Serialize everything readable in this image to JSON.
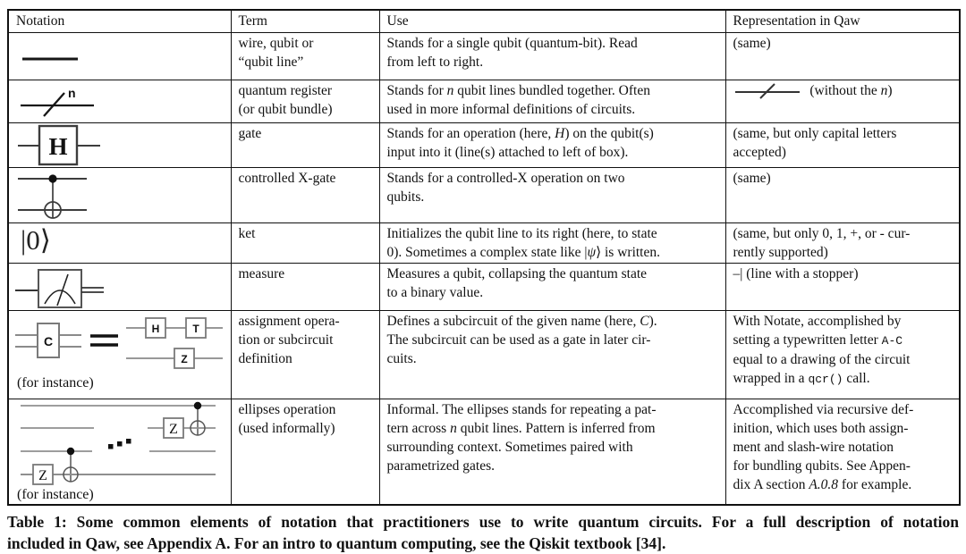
{
  "header": {
    "notation": "Notation",
    "term": "Term",
    "use": "Use",
    "representation": "Representation in Qaw"
  },
  "rows": [
    {
      "term": [
        {
          "t": "wire, qubit or\n“qubit line”"
        }
      ],
      "use": [
        {
          "t": "Stands for a single qubit (quantum-bit). Read\nfrom left to right."
        }
      ],
      "rep": [
        {
          "t": "(same)"
        }
      ]
    },
    {
      "notation": {
        "label": "n"
      },
      "term": [
        {
          "t": "quantum register\n(or qubit bundle)"
        }
      ],
      "use": [
        {
          "t": "Stands for "
        },
        {
          "t": "n",
          "s": "i"
        },
        {
          "t": " qubit lines bundled together. Often\nused in more informal definitions of circuits."
        }
      ],
      "rep": [
        {
          "t": " (without the "
        },
        {
          "t": "n",
          "s": "i"
        },
        {
          "t": ")"
        }
      ]
    },
    {
      "notation": {
        "label": "H"
      },
      "term": [
        {
          "t": "gate"
        }
      ],
      "use": [
        {
          "t": "Stands for an operation (here, "
        },
        {
          "t": "H",
          "s": "i"
        },
        {
          "t": ") on the qubit(s)\ninput into it (line(s) attached to left of box)."
        }
      ],
      "rep": [
        {
          "t": "(same, but only capital letters\naccepted)"
        }
      ]
    },
    {
      "term": [
        {
          "t": "controlled X-gate"
        }
      ],
      "use": [
        {
          "t": "Stands for a controlled-X operation on two\nqubits."
        }
      ],
      "rep": [
        {
          "t": "(same)"
        }
      ]
    },
    {
      "notation": {
        "ket": "|0⟩"
      },
      "term": [
        {
          "t": "ket"
        }
      ],
      "use": [
        {
          "t": "Initializes the qubit line to its right (here, to state\n0). Sometimes a complex state like |"
        },
        {
          "t": "ψ",
          "s": "i"
        },
        {
          "t": "⟩ is written."
        }
      ],
      "rep": [
        {
          "t": "(same, but only 0, 1, +, or - cur-\nrently supported)"
        }
      ]
    },
    {
      "term": [
        {
          "t": "measure"
        }
      ],
      "use": [
        {
          "t": "Measures a qubit, collapsing the quantum state\nto a binary value."
        }
      ],
      "rep": [
        {
          "t": "–| (line with a stopper)"
        }
      ]
    },
    {
      "notation": {
        "box_label": "C",
        "gate1": "H",
        "gate2": "T",
        "gate3": "Z",
        "for_instance": "(for instance)"
      },
      "term": [
        {
          "t": "assignment opera-\ntion or subcircuit\ndefinition"
        }
      ],
      "use": [
        {
          "t": "Defines a subcircuit of the given name (here, "
        },
        {
          "t": "C",
          "s": "i"
        },
        {
          "t": ").\nThe subcircuit can be used as a gate in later cir-\ncuits."
        }
      ],
      "rep": [
        {
          "t": "With Notate, accomplished by\nsetting a typewritten letter "
        },
        {
          "t": "A-C",
          "s": "m"
        },
        {
          "t": "\nequal to a drawing of the circuit\nwrapped in a "
        },
        {
          "t": "qcr()",
          "s": "m"
        },
        {
          "t": " call."
        }
      ]
    },
    {
      "notation": {
        "z_left": "Z",
        "z_right": "Z",
        "for_instance": "(for instance)"
      },
      "term": [
        {
          "t": "ellipses operation\n(used informally)"
        }
      ],
      "use": [
        {
          "t": "Informal. The ellipses stands for repeating a pat-\ntern across "
        },
        {
          "t": "n",
          "s": "i"
        },
        {
          "t": " qubit lines. Pattern is inferred from\nsurrounding context. Sometimes paired with\nparametrized gates."
        }
      ],
      "rep": [
        {
          "t": "Accomplished via recursive def-\ninition, which uses both assign-\nment and slash-wire notation\nfor bundling qubits. See Appen-\ndix A section "
        },
        {
          "t": "A.0.8",
          "s": "i"
        },
        {
          "t": " for example."
        }
      ]
    }
  ],
  "caption": {
    "line1": "Table 1: Some common elements of notation that practitioners use to write quantum circuits. For a full description of notation",
    "line2": "included in Qaw, see Appendix A. For an intro to quantum computing, see the Qiskit textbook [34]."
  },
  "colors": {
    "border": "#111111",
    "text": "#111111",
    "wire_gray": "#8a8a8a",
    "circuit_dark": "#3d3d3d"
  }
}
